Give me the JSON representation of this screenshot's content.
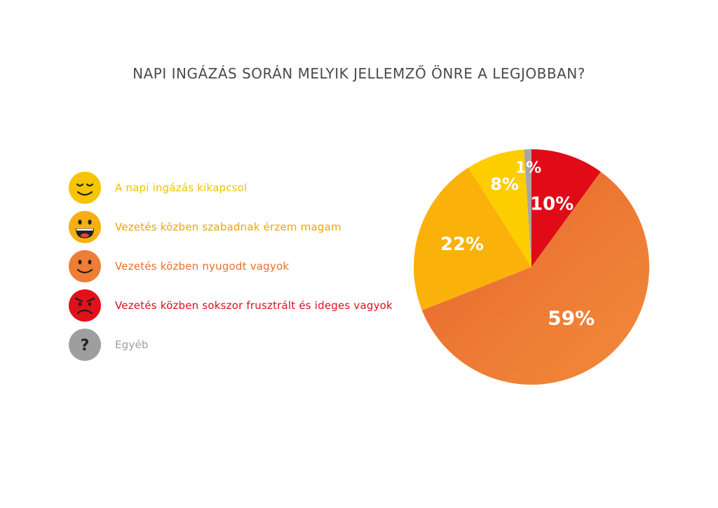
{
  "chart_data": {
    "type": "pie",
    "title": "NAPI INGÁZÁS SORÁN MELYIK JELLEMZŐ ÖNRE A LEGJOBBAN?",
    "slices": [
      {
        "label": "Vezetés közben sokszor frusztrált és ideges vagyok",
        "value": 10,
        "text": "10%",
        "color": "#e10b17",
        "icon": "angry-face-icon"
      },
      {
        "label": "Vezetés közben nyugodt vagyok",
        "value": 59,
        "text": "59%",
        "color": "#ed7c33",
        "icon": "calm-smile-icon"
      },
      {
        "label": "Vezetés közben szabadnak érzem magam",
        "value": 22,
        "text": "22%",
        "color": "#fab20a",
        "icon": "grinning-face-icon"
      },
      {
        "label": "A napi ingázás kikapcsol",
        "value": 8,
        "text": "8%",
        "color": "#fecd00",
        "icon": "relaxed-face-icon"
      },
      {
        "label": "Egyéb",
        "value": 1,
        "text": "1%",
        "color": "#a6a6a6",
        "icon": "question-mark-icon"
      }
    ],
    "legend_position": "left"
  },
  "legend": [
    {
      "label": "A napi ingázás kikapcsol",
      "color": "#f6c400",
      "text_color": "#f2c100",
      "icon": "relaxed-face-icon"
    },
    {
      "label": "Vezetés közben szabadnak érzem magam",
      "color": "#f6b012",
      "text_color": "#f0a500",
      "icon": "grinning-face-icon"
    },
    {
      "label": "Vezetés közben nyugodt vagyok",
      "color": "#ee7d35",
      "text_color": "#e8702a",
      "icon": "calm-smile-icon"
    },
    {
      "label": "Vezetés közben sokszor frusztrált és ideges vagyok",
      "color": "#e2101a",
      "text_color": "#d9101b",
      "icon": "angry-face-icon"
    },
    {
      "label": "Egyéb",
      "color": "#9e9e9e",
      "text_color": "#9e9e9e",
      "icon": "question-mark-icon"
    }
  ]
}
